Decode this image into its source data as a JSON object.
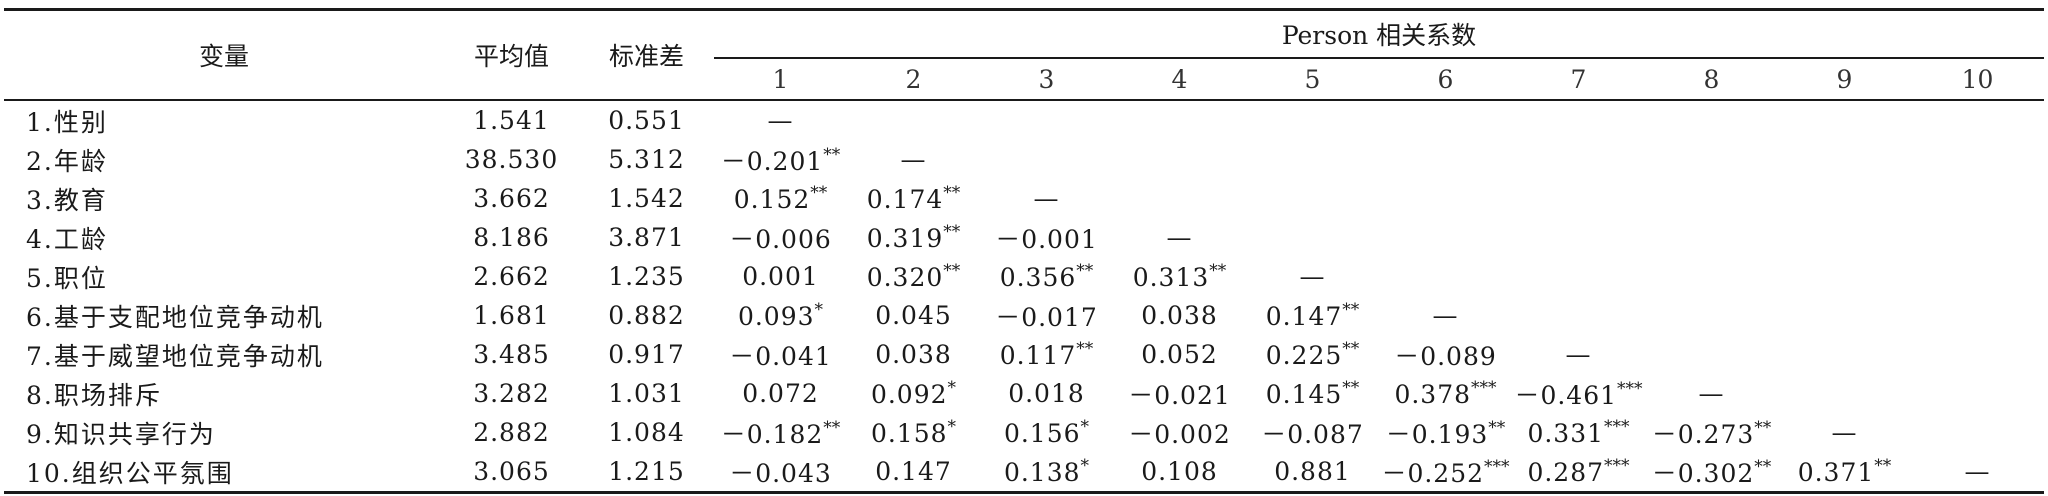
{
  "header": {
    "variable": "变量",
    "mean": "平均值",
    "sd": "标准差",
    "group": "Person 相关系数",
    "columns": [
      "1",
      "2",
      "3",
      "4",
      "5",
      "6",
      "7",
      "8",
      "9",
      "10"
    ]
  },
  "rows": [
    {
      "label": "1.性别",
      "mean": "1.541",
      "sd": "0.551",
      "r": [
        "—"
      ]
    },
    {
      "label": "2.年龄",
      "mean": "38.530",
      "sd": "5.312",
      "r": [
        "－0.201**",
        "—"
      ]
    },
    {
      "label": "3.教育",
      "mean": "3.662",
      "sd": "1.542",
      "r": [
        "0.152**",
        "0.174**",
        "—"
      ]
    },
    {
      "label": "4.工龄",
      "mean": "8.186",
      "sd": "3.871",
      "r": [
        "－0.006",
        "0.319**",
        "－0.001",
        "—"
      ]
    },
    {
      "label": "5.职位",
      "mean": "2.662",
      "sd": "1.235",
      "r": [
        "0.001",
        "0.320**",
        "0.356**",
        "0.313**",
        "—"
      ]
    },
    {
      "label": "6.基于支配地位竞争动机",
      "mean": "1.681",
      "sd": "0.882",
      "r": [
        "0.093*",
        "0.045",
        "－0.017",
        "0.038",
        "0.147**",
        "—"
      ]
    },
    {
      "label": "7.基于威望地位竞争动机",
      "mean": "3.485",
      "sd": "0.917",
      "r": [
        "－0.041",
        "0.038",
        "0.117**",
        "0.052",
        "0.225**",
        "－0.089",
        "—"
      ]
    },
    {
      "label": "8.职场排斥",
      "mean": "3.282",
      "sd": "1.031",
      "r": [
        "0.072",
        "0.092*",
        "0.018",
        "－0.021",
        "0.145**",
        "0.378***",
        "－0.461***",
        "—"
      ]
    },
    {
      "label": "9.知识共享行为",
      "mean": "2.882",
      "sd": "1.084",
      "r": [
        "－0.182**",
        "0.158*",
        "0.156*",
        "－0.002",
        "－0.087",
        "－0.193**",
        "0.331***",
        "－0.273**",
        "—"
      ]
    },
    {
      "label": "10.组织公平氛围",
      "mean": "3.065",
      "sd": "1.215",
      "r": [
        "－0.043",
        "0.147",
        "0.138*",
        "0.108",
        "0.881",
        "－0.252***",
        "0.287***",
        "－0.302**",
        "0.371**",
        "—"
      ]
    }
  ]
}
